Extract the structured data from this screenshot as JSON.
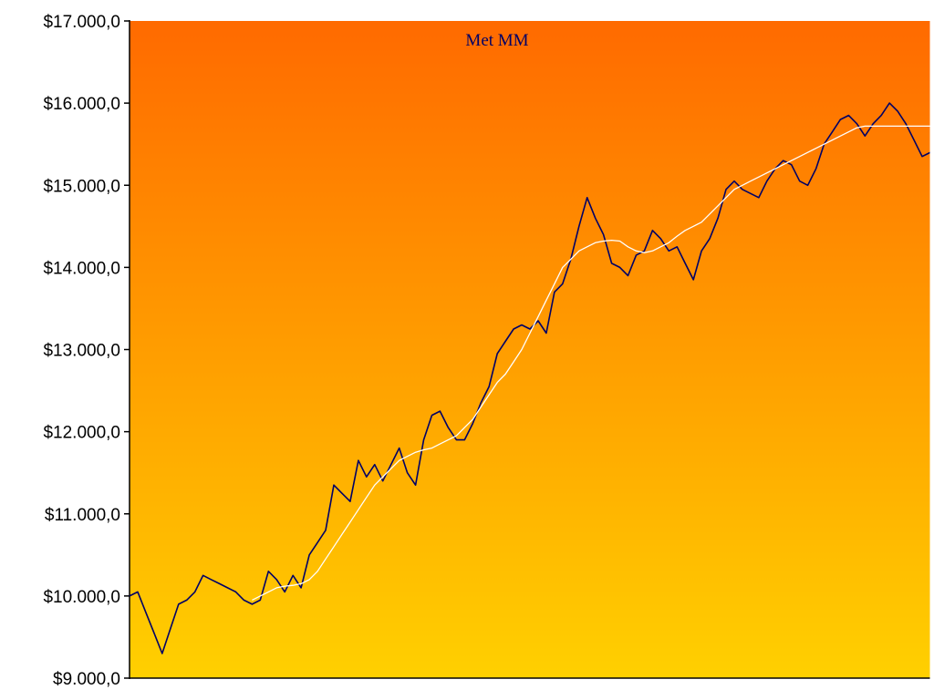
{
  "chart_data": {
    "type": "line",
    "title": "Met MM",
    "xlabel": "",
    "ylabel": "",
    "ylim": [
      9000,
      17000
    ],
    "y_ticks": [
      17000,
      16000,
      15000,
      14000,
      13000,
      12000,
      11000,
      10000,
      9000
    ],
    "y_tick_labels": [
      "$17.000,0",
      "$16.000,0",
      "$15.000,0",
      "$14.000,0",
      "$13.000,0",
      "$12.000,0",
      "$11.000,0",
      "$10.000,0",
      "$9.000,0"
    ],
    "x_range": [
      0,
      98
    ],
    "grid": false,
    "background_gradient": [
      "#ff6a00",
      "#ffd000"
    ],
    "series": [
      {
        "color": "#000066",
        "x": [
          0,
          1,
          2,
          3,
          4,
          5,
          6,
          7,
          8,
          9,
          10,
          11,
          12,
          13,
          14,
          15,
          16,
          17,
          18,
          19,
          20,
          21,
          22,
          23,
          24,
          25,
          26,
          27,
          28,
          29,
          30,
          31,
          32,
          33,
          34,
          35,
          36,
          37,
          38,
          39,
          40,
          41,
          42,
          43,
          44,
          45,
          46,
          47,
          48,
          49,
          50,
          51,
          52,
          53,
          54,
          55,
          56,
          57,
          58,
          59,
          60,
          61,
          62,
          63,
          64,
          65,
          66,
          67,
          68,
          69,
          70,
          71,
          72,
          73,
          74,
          75,
          76,
          77,
          78,
          79,
          80,
          81,
          82,
          83,
          84,
          85,
          86,
          87,
          88,
          89,
          90,
          91,
          92,
          93,
          94,
          95,
          96,
          97,
          98
        ],
        "values": [
          10000,
          10050,
          9800,
          9550,
          9300,
          9600,
          9900,
          9950,
          10050,
          10250,
          10200,
          10150,
          10100,
          10050,
          9950,
          9900,
          9950,
          10300,
          10200,
          10050,
          10250,
          10100,
          10500,
          10650,
          10800,
          11350,
          11250,
          11150,
          11650,
          11450,
          11600,
          11400,
          11600,
          11800,
          11500,
          11350,
          11900,
          12200,
          12250,
          12050,
          11900,
          11900,
          12100,
          12350,
          12550,
          12950,
          13100,
          13250,
          13300,
          13250,
          13350,
          13200,
          13700,
          13800,
          14100,
          14500,
          14850,
          14600,
          14400,
          14050,
          14000,
          13900,
          14150,
          14200,
          14450,
          14350,
          14200,
          14250,
          14050,
          13850,
          14200,
          14350,
          14600,
          14950,
          15050,
          14950,
          14900,
          14850,
          15050,
          15200,
          15300,
          15250,
          15050,
          15000,
          15200,
          15500,
          15650,
          15800,
          15850,
          15750,
          15600,
          15750,
          15850,
          16000,
          15900,
          15750,
          15550,
          15350,
          15400
        ]
      },
      {
        "color": "#ffffff",
        "x": [
          15,
          16,
          17,
          18,
          19,
          20,
          21,
          22,
          23,
          24,
          25,
          26,
          27,
          28,
          29,
          30,
          31,
          32,
          33,
          34,
          35,
          36,
          37,
          38,
          39,
          40,
          41,
          42,
          43,
          44,
          45,
          46,
          47,
          48,
          49,
          50,
          51,
          52,
          53,
          54,
          55,
          56,
          57,
          58,
          59,
          60,
          61,
          62,
          63,
          64,
          65,
          66,
          67,
          68,
          69,
          70,
          71,
          72,
          73,
          74,
          75,
          76,
          77,
          78,
          79,
          80,
          81,
          82,
          83,
          84,
          85,
          86,
          87,
          88,
          89,
          90,
          91,
          92,
          93,
          94,
          95,
          96,
          97,
          98
        ],
        "values": [
          9950,
          10000,
          10050,
          10100,
          10120,
          10130,
          10150,
          10200,
          10300,
          10450,
          10600,
          10750,
          10900,
          11050,
          11200,
          11350,
          11450,
          11550,
          11650,
          11700,
          11750,
          11780,
          11800,
          11850,
          11900,
          11950,
          12050,
          12150,
          12300,
          12450,
          12600,
          12700,
          12850,
          13000,
          13200,
          13400,
          13600,
          13800,
          14000,
          14100,
          14200,
          14250,
          14300,
          14320,
          14330,
          14320,
          14250,
          14200,
          14180,
          14200,
          14250,
          14300,
          14380,
          14450,
          14500,
          14550,
          14650,
          14750,
          14850,
          14950,
          15000,
          15050,
          15100,
          15150,
          15200,
          15250,
          15300,
          15350,
          15400,
          15450,
          15500,
          15550,
          15600,
          15650,
          15700,
          15720,
          15720,
          15720,
          15720,
          15720,
          15720,
          15720,
          15720,
          15720
        ]
      }
    ]
  }
}
